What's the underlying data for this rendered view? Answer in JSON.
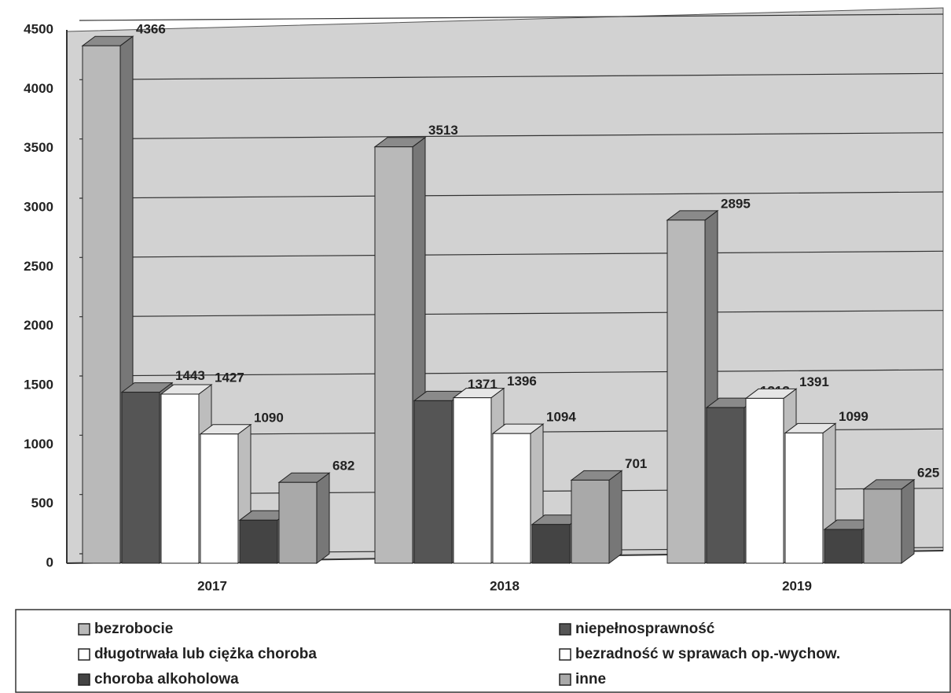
{
  "chart_data": {
    "type": "bar3d",
    "categories": [
      "2017",
      "2018",
      "2019"
    ],
    "series": [
      {
        "name": "bezrobocie",
        "color": "#b9b9b9",
        "values": [
          4366,
          3513,
          2895
        ]
      },
      {
        "name": "niepełnosprawność",
        "color": "#555555",
        "values": [
          1443,
          1371,
          1313
        ]
      },
      {
        "name": "długotrwała lub ciężka choroba",
        "color": "#ffffff",
        "values": [
          1427,
          1396,
          1391
        ]
      },
      {
        "name": "bezradność w sprawach op.-wychow.",
        "color": "#ffffff",
        "values": [
          1090,
          1094,
          1099
        ]
      },
      {
        "name": "choroba alkoholowa",
        "color": "#444444",
        "values": [
          363,
          327,
          285
        ]
      },
      {
        "name": "inne",
        "color": "#a9a9a9",
        "values": [
          682,
          701,
          625
        ]
      }
    ],
    "ylim": [
      0,
      4500
    ],
    "yticks": [
      0,
      500,
      1000,
      1500,
      2000,
      2500,
      3000,
      3500,
      4000,
      4500
    ],
    "grid": true
  }
}
